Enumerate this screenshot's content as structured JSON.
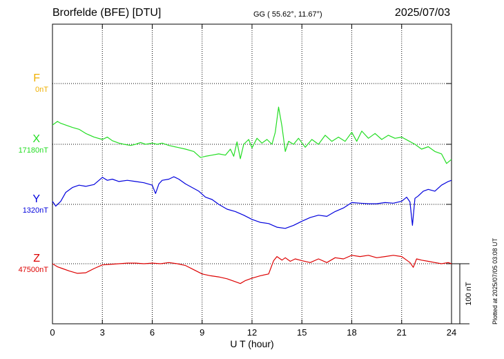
{
  "header": {
    "station": "Brorfelde (BFE)  [DTU]",
    "coords": "GG ( 55.62°,  11.67°)",
    "date": "2025/07/03",
    "plotted": "Plotted at 2025/07/05 03:08 UT"
  },
  "chart_data": {
    "type": "line",
    "xlabel": "U T (hour)",
    "xlim": [
      0,
      24
    ],
    "xticks": [
      "0",
      "3",
      "6",
      "9",
      "12",
      "15",
      "18",
      "21",
      "24"
    ],
    "scale_bar_label": "100 nT",
    "grid": true,
    "series": [
      {
        "name": "F",
        "baseline": "0nT",
        "color": "#f0b000",
        "x": [],
        "y": []
      },
      {
        "name": "X",
        "baseline": "17180nT",
        "color": "#22dd22",
        "x": [
          0,
          0.3,
          0.5,
          0.8,
          1.2,
          1.6,
          2.0,
          2.5,
          3.0,
          3.3,
          3.6,
          4.0,
          4.3,
          4.7,
          5.0,
          5.3,
          5.6,
          6.0,
          6.3,
          6.6,
          7.0,
          7.5,
          8.0,
          8.5,
          8.9,
          9.2,
          9.6,
          10.0,
          10.4,
          10.7,
          10.9,
          11.1,
          11.3,
          11.5,
          11.8,
          12.0,
          12.3,
          12.6,
          12.9,
          13.2,
          13.4,
          13.6,
          13.8,
          14.0,
          14.2,
          14.5,
          14.8,
          15.2,
          15.6,
          16.0,
          16.4,
          16.8,
          17.2,
          17.6,
          18.0,
          18.3,
          18.6,
          19.0,
          19.4,
          19.8,
          20.2,
          20.6,
          21.0,
          21.4,
          21.8,
          22.2,
          22.6,
          23.0,
          23.4,
          23.7,
          24.0
        ],
        "y": [
          32,
          38,
          35,
          32,
          28,
          25,
          18,
          12,
          8,
          12,
          6,
          2,
          0,
          -2,
          0,
          3,
          0,
          2,
          0,
          2,
          -2,
          -5,
          -8,
          -12,
          -22,
          -20,
          -18,
          -16,
          -18,
          -8,
          -20,
          4,
          -24,
          0,
          8,
          -6,
          10,
          2,
          8,
          0,
          20,
          62,
          30,
          -12,
          5,
          0,
          10,
          -5,
          8,
          0,
          15,
          5,
          12,
          5,
          20,
          5,
          22,
          10,
          18,
          8,
          15,
          10,
          12,
          6,
          0,
          -8,
          -4,
          -12,
          -16,
          -32,
          -25
        ]
      },
      {
        "name": "Y",
        "baseline": "1320nT",
        "color": "#0000dd",
        "x": [
          0,
          0.2,
          0.5,
          0.8,
          1.2,
          1.6,
          2.0,
          2.5,
          3.0,
          3.3,
          3.6,
          4.0,
          4.5,
          5.0,
          5.5,
          6.0,
          6.2,
          6.4,
          6.6,
          7.0,
          7.3,
          7.6,
          8.0,
          8.4,
          8.8,
          9.2,
          9.6,
          10.0,
          10.5,
          11.0,
          11.5,
          12.0,
          12.5,
          13.0,
          13.5,
          14.0,
          14.5,
          15.0,
          15.5,
          16.0,
          16.5,
          17.0,
          17.5,
          18.0,
          18.5,
          19.0,
          19.5,
          20.0,
          20.5,
          21.0,
          21.3,
          21.5,
          21.65,
          21.8,
          22.0,
          22.3,
          22.6,
          23.0,
          23.4,
          23.8,
          24.0
        ],
        "y": [
          5,
          -3,
          5,
          20,
          28,
          32,
          30,
          33,
          45,
          40,
          42,
          38,
          40,
          38,
          36,
          32,
          18,
          34,
          40,
          42,
          46,
          42,
          34,
          28,
          22,
          12,
          8,
          0,
          -8,
          -12,
          -18,
          -25,
          -30,
          -32,
          -38,
          -40,
          -35,
          -28,
          -22,
          -18,
          -20,
          -12,
          -6,
          3,
          2,
          1,
          1,
          3,
          2,
          5,
          12,
          4,
          -35,
          10,
          14,
          22,
          25,
          22,
          32,
          38,
          40
        ]
      },
      {
        "name": "Z",
        "baseline": "47500nT",
        "color": "#dd0000",
        "x": [
          0,
          0.3,
          0.6,
          1.0,
          1.5,
          2.0,
          2.5,
          3.0,
          3.5,
          4.0,
          4.5,
          5.0,
          5.5,
          6.0,
          6.5,
          7.0,
          7.5,
          8.0,
          8.5,
          9.0,
          9.5,
          10.0,
          10.5,
          11.0,
          11.3,
          11.6,
          12.0,
          12.5,
          13.0,
          13.3,
          13.5,
          13.8,
          14.0,
          14.3,
          14.6,
          15.0,
          15.5,
          16.0,
          16.5,
          17.0,
          17.5,
          18.0,
          18.5,
          19.0,
          19.5,
          20.0,
          20.5,
          21.0,
          21.3,
          21.5,
          21.7,
          21.9,
          22.2,
          22.6,
          23.0,
          23.4,
          23.8,
          24.0
        ],
        "y": [
          0,
          -5,
          -8,
          -12,
          -16,
          -15,
          -8,
          -2,
          -1,
          0,
          1,
          1,
          0,
          1,
          0,
          2,
          0,
          -3,
          -10,
          -17,
          -20,
          -22,
          -25,
          -30,
          -33,
          -28,
          -24,
          -20,
          -17,
          5,
          12,
          6,
          10,
          4,
          8,
          5,
          2,
          8,
          2,
          10,
          8,
          14,
          12,
          14,
          10,
          12,
          14,
          12,
          6,
          2,
          -6,
          8,
          6,
          4,
          2,
          0,
          2,
          0
        ]
      }
    ]
  }
}
